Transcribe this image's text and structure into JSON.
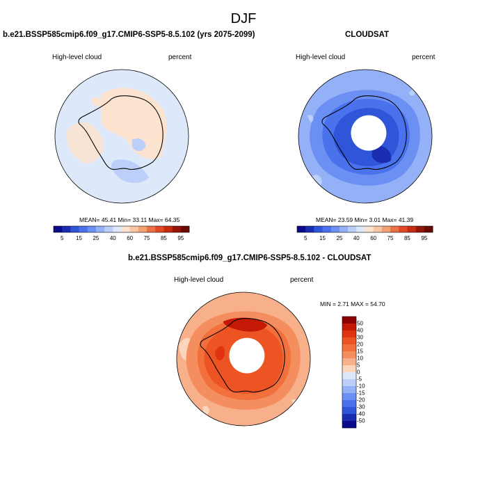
{
  "title": "DJF",
  "chart_data": [
    {
      "type": "heatmap",
      "projection": "south-polar-stereographic",
      "title": "b.e21.BSSP585cmip6.f09_g17.CMIP6-SSP5-8.5.102 (yrs 2075-2099)",
      "left_label": "High-level cloud",
      "right_label": "percent",
      "stats": {
        "mean": 45.41,
        "min": 33.11,
        "max": 64.35
      },
      "stats_text": "MEAN=  45.41  Min=  33.11  Max=  64.35",
      "colorbar": {
        "orientation": "horizontal",
        "levels": [
          5,
          10,
          15,
          20,
          25,
          30,
          40,
          50,
          60,
          70,
          75,
          80,
          85,
          90,
          95
        ],
        "tick_labels": [
          "5",
          "15",
          "25",
          "40",
          "60",
          "75",
          "85",
          "95"
        ],
        "colors": [
          "#0a0a8c",
          "#1a2db0",
          "#2f55d8",
          "#4a72ec",
          "#6b8ff2",
          "#94b0f6",
          "#bccff9",
          "#dde8fb",
          "#fbe3cf",
          "#f8c5a4",
          "#f3a074",
          "#ec7148",
          "#e04a24",
          "#c42d12",
          "#951607",
          "#6b0a02"
        ]
      },
      "field_summary": "mostly 40-60% (light blue and light peach), slightly higher over East Antarctic plateau"
    },
    {
      "type": "heatmap",
      "projection": "south-polar-stereographic",
      "title": "CLOUDSAT",
      "left_label": "High-level cloud",
      "right_label": "percent",
      "stats": {
        "mean": 23.59,
        "min": 3.01,
        "max": 41.39
      },
      "stats_text": "MEAN=  23.59  Min=   3.01  Max=  41.39",
      "colorbar": {
        "orientation": "horizontal",
        "levels": [
          5,
          10,
          15,
          20,
          25,
          30,
          40,
          50,
          60,
          70,
          75,
          80,
          85,
          90,
          95
        ],
        "tick_labels": [
          "5",
          "15",
          "25",
          "40",
          "60",
          "75",
          "85",
          "95"
        ],
        "colors": [
          "#0a0a8c",
          "#1a2db0",
          "#2f55d8",
          "#4a72ec",
          "#6b8ff2",
          "#94b0f6",
          "#bccff9",
          "#dde8fb",
          "#fbe3cf",
          "#f8c5a4",
          "#f3a074",
          "#ec7148",
          "#e04a24",
          "#c42d12",
          "#951607",
          "#6b0a02"
        ]
      },
      "field_summary": "mostly 10-35%, lowest over interior Antarctica, missing data near pole"
    },
    {
      "type": "heatmap",
      "projection": "south-polar-stereographic",
      "title": "b.e21.BSSP585cmip6.f09_g17.CMIP6-SSP5-8.5.102 - CLOUDSAT",
      "left_label": "High-level cloud",
      "right_label": "percent",
      "stats": {
        "min": 2.71,
        "max": 54.7
      },
      "stats_text": "MIN =  2.71 MAX =  54.70",
      "colorbar": {
        "orientation": "vertical",
        "levels": [
          -50,
          -40,
          -30,
          -20,
          -15,
          -10,
          -5,
          0,
          5,
          10,
          15,
          20,
          30,
          40,
          50
        ],
        "tick_labels": [
          "50",
          "40",
          "30",
          "20",
          "15",
          "10",
          "5",
          "0",
          "-5",
          "-10",
          "-15",
          "-20",
          "-30",
          "-40",
          "-50"
        ],
        "colors": [
          "#8b0000",
          "#c41a05",
          "#e03410",
          "#ec5423",
          "#f2703c",
          "#f58e5e",
          "#f8b08a",
          "#fbd6bd",
          "#dde8fb",
          "#bccff9",
          "#94b0f6",
          "#6b8ff2",
          "#4a72ec",
          "#2f55d8",
          "#1a2db0",
          "#0a0a8c"
        ]
      },
      "field_summary": "positive everywhere, largest (40-55) over Antarctic coast and interior, 10-20 at lower latitudes"
    }
  ]
}
